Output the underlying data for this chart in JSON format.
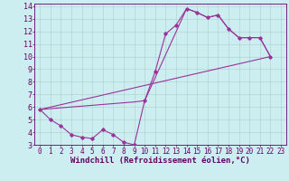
{
  "bg_color": "#cdeef0",
  "line_color": "#993399",
  "grid_color": "#b0cccc",
  "text_color": "#660066",
  "xlabel": "Windchill (Refroidissement éolien,°C)",
  "xlim": [
    -0.5,
    23.5
  ],
  "ylim": [
    3,
    14.2
  ],
  "xticks": [
    0,
    1,
    2,
    3,
    4,
    5,
    6,
    7,
    8,
    9,
    10,
    11,
    12,
    13,
    14,
    15,
    16,
    17,
    18,
    19,
    20,
    21,
    22,
    23
  ],
  "yticks": [
    3,
    4,
    5,
    6,
    7,
    8,
    9,
    10,
    11,
    12,
    13,
    14
  ],
  "curve1_x": [
    0,
    1,
    2,
    3,
    4,
    5,
    6,
    7,
    8,
    9,
    10,
    11,
    12,
    13,
    14,
    15,
    16,
    17,
    18,
    19,
    20,
    21,
    22
  ],
  "curve1_y": [
    5.8,
    5.0,
    4.5,
    3.8,
    3.6,
    3.5,
    4.2,
    3.8,
    3.2,
    3.0,
    6.5,
    8.8,
    11.8,
    12.5,
    13.8,
    13.5,
    13.1,
    13.3,
    12.2,
    11.5,
    11.5,
    11.5,
    10.0
  ],
  "line2_x": [
    0,
    22
  ],
  "line2_y": [
    5.8,
    10.0
  ],
  "curve3_x": [
    0,
    9,
    10,
    14,
    15,
    16,
    17,
    18,
    19,
    20,
    21,
    22
  ],
  "curve3_y": [
    5.8,
    6.4,
    6.5,
    13.8,
    13.5,
    13.1,
    13.3,
    12.2,
    11.5,
    11.5,
    11.5,
    10.0
  ],
  "tick_fs": 5.5,
  "label_fs": 6.5
}
